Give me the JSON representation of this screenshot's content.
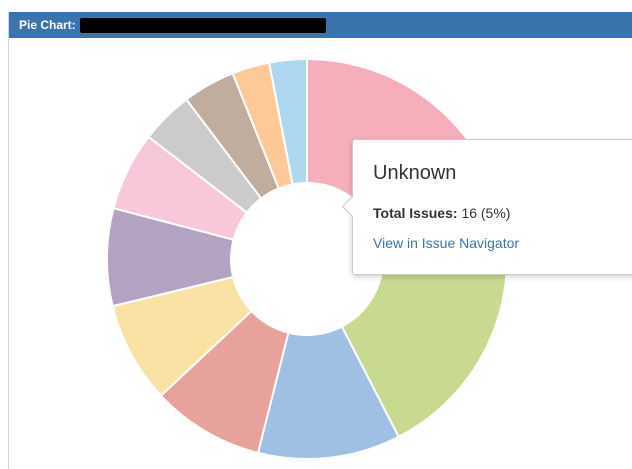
{
  "panel": {
    "title": "Pie Chart:"
  },
  "chart_data": {
    "type": "pie",
    "donut": true,
    "slices": [
      {
        "value": 58.0,
        "color": "#f7aebb"
      },
      {
        "value": 82.0,
        "color": "#c8d990"
      },
      {
        "value": 38.0,
        "color": "#a0c0e3"
      },
      {
        "value": 30.0,
        "color": "#e7a29b"
      },
      {
        "value": 27.0,
        "color": "#f9e2a3"
      },
      {
        "value": 26.0,
        "color": "#b3a2c1"
      },
      {
        "value": 21.0,
        "color": "#f9c7da"
      },
      {
        "value": 14.0,
        "color": "#cbcbcb"
      },
      {
        "value": 14.0,
        "color": "#c1ad9e"
      },
      {
        "value": 10.0,
        "color": "#fcc997"
      },
      {
        "value": 10.0,
        "color": "#add8ef"
      }
    ]
  },
  "tooltip": {
    "title": "Unknown",
    "total_label": "Total Issues:",
    "total_value": "16 (5%)",
    "link_label": "View in Issue Navigator"
  }
}
